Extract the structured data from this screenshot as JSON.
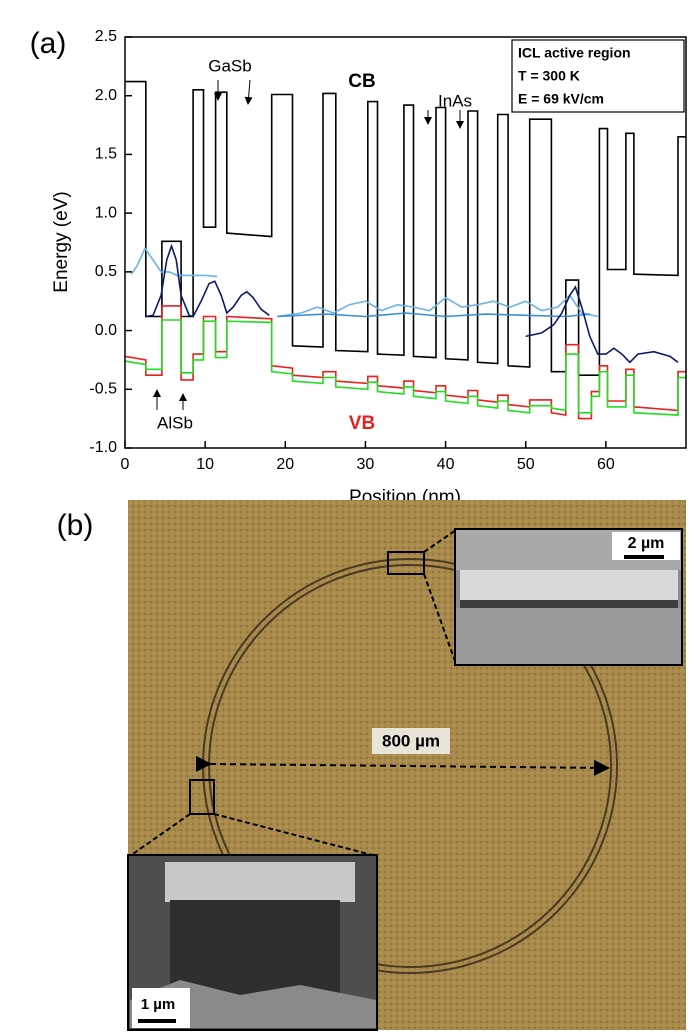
{
  "chart_data": {
    "type": "line",
    "panel_label": "(a)",
    "xlabel": "Position (nm)",
    "ylabel": "Energy (eV)",
    "xlim": [
      0,
      70
    ],
    "xticks": [
      0,
      10,
      20,
      30,
      40,
      50,
      60
    ],
    "ylim": [
      -1,
      2.5
    ],
    "yticks": [
      {
        "value": -1,
        "label": "-1.0"
      },
      -0.5,
      {
        "value": 0,
        "label": "0.0"
      },
      0.5,
      {
        "value": 1,
        "label": "1.0"
      },
      1.5,
      {
        "value": 2,
        "label": "2.0"
      },
      2.5
    ],
    "annotations": [
      "GaSb",
      "InAs",
      "CB",
      "AlSb",
      "VB"
    ],
    "legend_box": [
      "ICL active region",
      "T = 300 K",
      "E = 69 kV/cm"
    ],
    "series": [
      {
        "color": "#000000",
        "x": [
          0,
          2.6,
          2.6,
          4.6,
          4.6,
          7.0,
          7.0,
          8.5,
          8.5,
          9.8,
          9.8,
          11.3,
          11.3,
          12.7,
          12.7,
          18.3,
          18.3,
          20.9,
          20.9,
          24.7,
          24.7,
          26.3,
          26.3,
          30.3,
          30.3,
          31.5,
          31.5,
          34.8,
          34.8,
          36,
          36,
          38.8,
          38.8,
          40,
          40,
          42.8,
          42.8,
          44,
          44,
          46.5,
          46.5,
          47.8,
          47.8,
          50.5,
          50.5,
          53.2,
          53.2,
          55,
          55,
          56.6,
          56.6,
          59.2,
          59.2,
          60.2,
          60.2,
          62.5,
          62.5,
          63.5,
          63.5,
          69,
          69,
          70
        ],
        "values": [
          2.12,
          2.12,
          0.12,
          0.12,
          0.76,
          0.76,
          0.12,
          0.12,
          2.05,
          2.05,
          0.88,
          0.88,
          2.03,
          2.03,
          0.83,
          0.8,
          2.01,
          2.01,
          -0.13,
          -0.14,
          2.02,
          2.02,
          -0.17,
          -0.18,
          1.95,
          1.95,
          -0.2,
          -0.21,
          1.92,
          1.92,
          -0.22,
          -0.23,
          1.9,
          1.9,
          -0.24,
          -0.25,
          1.87,
          1.87,
          -0.27,
          -0.28,
          1.84,
          1.84,
          -0.3,
          -0.31,
          1.8,
          1.8,
          -0.35,
          -0.35,
          0.43,
          0.43,
          -0.38,
          -0.38,
          1.72,
          1.72,
          0.52,
          0.52,
          1.68,
          1.68,
          0.48,
          0.47,
          1.65,
          1.65
        ]
      },
      {
        "color": "#e8201e",
        "x": [
          0,
          2.6,
          2.6,
          4.6,
          4.6,
          7.0,
          7.0,
          8.5,
          8.5,
          9.8,
          9.8,
          11.3,
          11.3,
          12.7,
          12.7,
          18.3,
          18.3,
          20.9,
          20.9,
          24.7,
          24.7,
          26.3,
          26.3,
          30.3,
          30.3,
          31.5,
          31.5,
          34.8,
          34.8,
          36,
          36,
          38.8,
          38.8,
          40,
          40,
          42.8,
          42.8,
          44,
          44,
          46.5,
          46.5,
          47.8,
          47.8,
          50.5,
          50.5,
          53.2,
          53.2,
          55,
          55,
          56.6,
          56.6,
          58.2,
          58.2,
          59.2,
          59.2,
          60.2,
          60.2,
          62.5,
          62.5,
          63.5,
          63.5,
          69,
          69,
          70
        ],
        "values": [
          -0.22,
          -0.25,
          -0.38,
          -0.38,
          0.21,
          0.21,
          -0.42,
          -0.42,
          -0.2,
          -0.2,
          0.12,
          0.12,
          -0.18,
          -0.18,
          0.12,
          0.1,
          -0.3,
          -0.32,
          -0.38,
          -0.4,
          -0.35,
          -0.35,
          -0.43,
          -0.45,
          -0.39,
          -0.39,
          -0.47,
          -0.49,
          -0.43,
          -0.43,
          -0.51,
          -0.53,
          -0.47,
          -0.47,
          -0.55,
          -0.57,
          -0.51,
          -0.51,
          -0.59,
          -0.61,
          -0.55,
          -0.55,
          -0.63,
          -0.65,
          -0.59,
          -0.59,
          -0.7,
          -0.72,
          -0.12,
          -0.12,
          -0.75,
          -0.75,
          -0.52,
          -0.52,
          -0.3,
          -0.3,
          -0.6,
          -0.6,
          -0.33,
          -0.33,
          -0.65,
          -0.68,
          -0.35,
          -0.35
        ]
      },
      {
        "color": "#22dd22",
        "x": [
          0,
          2.6,
          2.6,
          4.6,
          4.6,
          7.0,
          7.0,
          8.5,
          8.5,
          9.8,
          9.8,
          11.3,
          11.3,
          12.7,
          12.7,
          18.3,
          18.3,
          20.9,
          20.9,
          24.7,
          24.7,
          26.3,
          26.3,
          30.3,
          30.3,
          31.5,
          31.5,
          34.8,
          34.8,
          36,
          36,
          38.8,
          38.8,
          40,
          40,
          42.8,
          42.8,
          44,
          44,
          46.5,
          46.5,
          47.8,
          47.8,
          50.5,
          50.5,
          53.2,
          53.2,
          55,
          55,
          56.6,
          56.6,
          58.2,
          58.2,
          59.2,
          59.2,
          60.2,
          60.2,
          62.5,
          62.5,
          63.5,
          63.5,
          69,
          69,
          70
        ],
        "values": [
          -0.26,
          -0.29,
          -0.33,
          -0.33,
          0.09,
          0.09,
          -0.36,
          -0.36,
          -0.25,
          -0.25,
          0.08,
          0.08,
          -0.23,
          -0.23,
          0.08,
          0.07,
          -0.35,
          -0.37,
          -0.43,
          -0.45,
          -0.4,
          -0.4,
          -0.48,
          -0.5,
          -0.44,
          -0.44,
          -0.52,
          -0.54,
          -0.48,
          -0.48,
          -0.56,
          -0.58,
          -0.52,
          -0.52,
          -0.6,
          -0.62,
          -0.56,
          -0.56,
          -0.64,
          -0.66,
          -0.6,
          -0.6,
          -0.68,
          -0.7,
          -0.64,
          -0.64,
          -0.66,
          -0.68,
          -0.2,
          -0.2,
          -0.7,
          -0.7,
          -0.56,
          -0.56,
          -0.35,
          -0.35,
          -0.65,
          -0.65,
          -0.38,
          -0.38,
          -0.7,
          -0.72,
          -0.4,
          -0.4
        ]
      },
      {
        "color": "#6ab4e8",
        "x": [
          0.8,
          1.5,
          2.5,
          3.5,
          4.5,
          5.5,
          6.5,
          8,
          10,
          11.5,
          null,
          19,
          22,
          24,
          26,
          28,
          30,
          32,
          34,
          36,
          38,
          40,
          42,
          44,
          46,
          48,
          50,
          52,
          54,
          55.5,
          57,
          59
        ],
        "values": [
          0.48,
          0.55,
          0.7,
          0.6,
          0.5,
          0.5,
          0.47,
          0.47,
          0.47,
          0.46,
          null,
          0.12,
          0.15,
          0.2,
          0.15,
          0.22,
          0.25,
          0.17,
          0.22,
          0.2,
          0.17,
          0.28,
          0.2,
          0.22,
          0.25,
          0.2,
          0.25,
          0.17,
          0.2,
          0.3,
          0.15,
          0.12
        ]
      },
      {
        "color": "#3a8fd6",
        "x": [
          19,
          25,
          30,
          35,
          40,
          45,
          50,
          55,
          58
        ],
        "values": [
          0.12,
          0.14,
          0.12,
          0.15,
          0.12,
          0.14,
          0.13,
          0.12,
          0.14
        ]
      },
      {
        "color": "#0d1a6b",
        "x": [
          2.6,
          3.5,
          4.5,
          5.2,
          5.8,
          6.4,
          7.0,
          8.0,
          8.5,
          9.5,
          10.5,
          11.2,
          12,
          12.7,
          13.5,
          14.5,
          15.2,
          16,
          17,
          18,
          null,
          50,
          52,
          53.5,
          54.5,
          55.5,
          56.2,
          57,
          58,
          59,
          60,
          61,
          62,
          63,
          64,
          66,
          68,
          69
        ],
        "values": [
          0.12,
          0.13,
          0.3,
          0.6,
          0.72,
          0.6,
          0.3,
          0.13,
          0.12,
          0.25,
          0.4,
          0.42,
          0.3,
          0.15,
          0.2,
          0.3,
          0.33,
          0.28,
          0.18,
          0.13,
          null,
          -0.05,
          -0.02,
          0.05,
          0.15,
          0.3,
          0.37,
          0.2,
          -0.05,
          -0.2,
          -0.2,
          -0.15,
          -0.2,
          -0.27,
          -0.2,
          -0.18,
          -0.22,
          -0.27
        ]
      }
    ]
  },
  "panel_b": {
    "panel_label": "(b)",
    "diameter_label": "800 µm",
    "inset_top_scale": "2 µm",
    "inset_bottom_scale": "1 µm"
  }
}
